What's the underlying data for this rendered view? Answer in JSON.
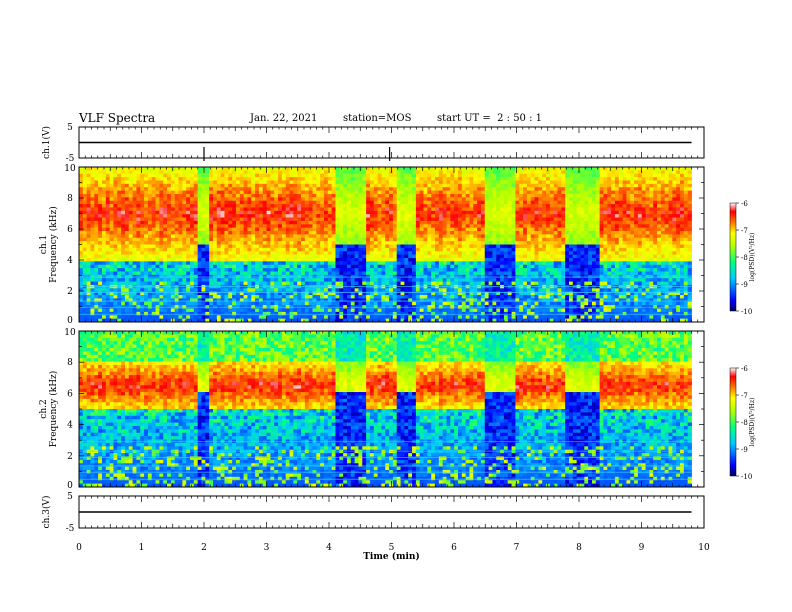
{
  "header": {
    "title": "VLF Spectra",
    "date": "Jan. 22, 2021",
    "station": "station=MOS",
    "start": "start UT =  2 : 50 : 1"
  },
  "chart_data": [
    {
      "type": "line",
      "panel": "ch1-waveform",
      "ylabel": "ch.1(V)",
      "ylim": [
        -5,
        5
      ],
      "yticks": [
        "5",
        "-5"
      ],
      "xlim": [
        0,
        10
      ],
      "series": [
        {
          "x": [
            0,
            9.8
          ],
          "values": [
            0,
            0
          ]
        }
      ],
      "note_spikes_x": [
        2.0,
        4.97
      ]
    },
    {
      "type": "heatmap",
      "panel": "ch1-spectrogram",
      "ylabel": "ch.1\nFrequency (kHz)",
      "ylim": [
        0,
        10
      ],
      "yticks": [
        "0",
        "2",
        "4",
        "6",
        "8",
        "10"
      ],
      "xlim": [
        0,
        10
      ],
      "data_x_end": 9.8,
      "dominant_band_khz": [
        4,
        10
      ],
      "quiet_intervals_min": [
        [
          1.9,
          2.1
        ],
        [
          4.1,
          4.6
        ],
        [
          5.1,
          5.4
        ],
        [
          6.5,
          7.0
        ],
        [
          7.8,
          8.3
        ]
      ],
      "colorbar": {
        "label": "log(PSD)(V²/Hz)",
        "ticks": [
          "-6",
          "-7",
          "-8",
          "-9",
          "-10"
        ],
        "range": [
          -10,
          -6
        ]
      }
    },
    {
      "type": "heatmap",
      "panel": "ch2-spectrogram",
      "ylabel": "ch.2\nFrequency (kHz)",
      "ylim": [
        0,
        10
      ],
      "yticks": [
        "0",
        "2",
        "4",
        "6",
        "8",
        "10"
      ],
      "xlim": [
        0,
        10
      ],
      "data_x_end": 9.8,
      "dominant_band_khz": [
        5,
        8
      ],
      "quiet_intervals_min": [
        [
          1.9,
          2.1
        ],
        [
          4.1,
          4.6
        ],
        [
          5.1,
          5.4
        ],
        [
          6.5,
          7.0
        ],
        [
          7.8,
          8.3
        ]
      ],
      "colorbar": {
        "label": "log(PSD)(V²/Hz)",
        "ticks": [
          "-6",
          "-7",
          "-8",
          "-9",
          "-10"
        ],
        "range": [
          -10,
          -6
        ]
      }
    },
    {
      "type": "line",
      "panel": "ch3-waveform",
      "ylabel": "ch.3(V)",
      "ylim": [
        -5,
        5
      ],
      "yticks": [
        "5",
        "-5"
      ],
      "xlim": [
        0,
        10
      ],
      "xlabel": "Time (min)",
      "xticks": [
        "0",
        "1",
        "2",
        "3",
        "4",
        "5",
        "6",
        "7",
        "8",
        "9",
        "10"
      ],
      "series": [
        {
          "x": [
            0,
            9.8
          ],
          "values": [
            0,
            0
          ]
        }
      ]
    }
  ]
}
